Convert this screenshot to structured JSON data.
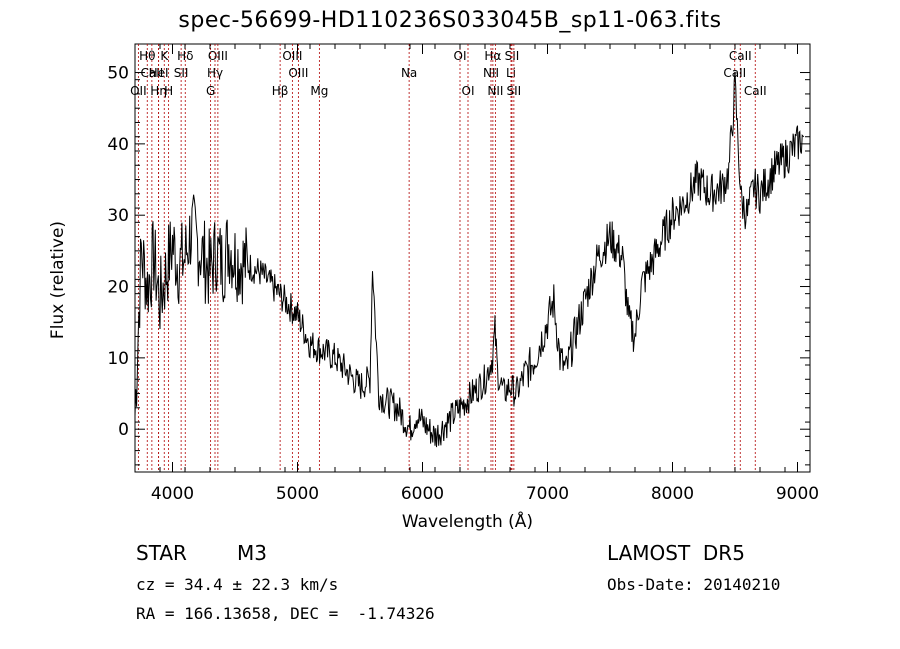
{
  "chart_data": {
    "type": "line",
    "title": "spec-56699-HD110236S033045B_sp11-063.fits",
    "xlabel": "Wavelength (Å)",
    "ylabel": "Flux (relative)",
    "xlim": [
      3700,
      9100
    ],
    "ylim": [
      -6,
      54
    ],
    "xticks": [
      4000,
      5000,
      6000,
      7000,
      8000,
      9000
    ],
    "yticks": [
      0,
      10,
      20,
      30,
      40,
      50
    ],
    "grid": false,
    "series": [
      {
        "x": [
          3700,
          3750,
          3800,
          3850,
          3900,
          3950,
          4000,
          4050,
          4100,
          4150,
          4200,
          4250,
          4300,
          4350,
          4400,
          4450,
          4500,
          4600,
          4700,
          4800,
          4900,
          5000,
          5100,
          5200,
          5300,
          5400,
          5500,
          5580,
          5600,
          5650,
          5700,
          5800,
          5900,
          5950,
          6000,
          6100,
          6200,
          6300,
          6400,
          6500,
          6560,
          6580,
          6600,
          6650,
          6700,
          6750,
          6800,
          6900,
          7000,
          7050,
          7100,
          7150,
          7200,
          7300,
          7400,
          7500,
          7600,
          7650,
          7700,
          7750,
          7800,
          7900,
          8000,
          8100,
          8200,
          8300,
          8400,
          8450,
          8500,
          8550,
          8600,
          8650,
          8700,
          8800,
          8900,
          9000,
          9050
        ],
        "y": [
          2,
          25,
          20,
          24,
          18,
          22,
          26,
          23,
          24,
          28,
          26,
          24,
          22,
          25,
          23,
          26,
          24,
          23,
          22,
          20,
          18,
          16,
          12,
          11,
          10,
          8,
          6,
          7,
          23,
          5,
          4,
          3,
          0,
          2,
          1,
          -1,
          1,
          3,
          5,
          7,
          10,
          14,
          8,
          5,
          6,
          5,
          7,
          10,
          15,
          18,
          10,
          8,
          12,
          18,
          24,
          27,
          24,
          15,
          13,
          20,
          22,
          26,
          30,
          32,
          35,
          33,
          34,
          36,
          48,
          32,
          30,
          34,
          33,
          36,
          38,
          40,
          41
        ]
      }
    ],
    "lines": [
      {
        "name": "Hθ",
        "x": 3798,
        "row": 0
      },
      {
        "name": "CaII",
        "x": 3835,
        "row": 1
      },
      {
        "name": "OII",
        "x": 3727,
        "row": 2
      },
      {
        "name": "K",
        "x": 3934,
        "row": 0
      },
      {
        "name": "HeI",
        "x": 3889,
        "row": 1
      },
      {
        "name": "Hη",
        "x": 3889,
        "row": 2
      },
      {
        "name": "H",
        "x": 3969,
        "row": 2
      },
      {
        "name": "Hδ",
        "x": 4102,
        "row": 0
      },
      {
        "name": "SII",
        "x": 4069,
        "row": 1
      },
      {
        "name": "OIII",
        "x": 4363,
        "row": 0
      },
      {
        "name": "Hγ",
        "x": 4340,
        "row": 1
      },
      {
        "name": "G",
        "x": 4305,
        "row": 2
      },
      {
        "name": "OIII",
        "x": 4959,
        "row": 0
      },
      {
        "name": "OIII",
        "x": 5007,
        "row": 1
      },
      {
        "name": "Hβ",
        "x": 4861,
        "row": 2
      },
      {
        "name": "Mg",
        "x": 5175,
        "row": 2
      },
      {
        "name": "Na",
        "x": 5893,
        "row": 1
      },
      {
        "name": "OI",
        "x": 6300,
        "row": 0
      },
      {
        "name": "OI",
        "x": 6364,
        "row": 2
      },
      {
        "name": "Hα",
        "x": 6563,
        "row": 0
      },
      {
        "name": "SII",
        "x": 6716,
        "row": 0
      },
      {
        "name": "NII",
        "x": 6548,
        "row": 1
      },
      {
        "name": "Li",
        "x": 6708,
        "row": 1
      },
      {
        "name": "NII",
        "x": 6583,
        "row": 2
      },
      {
        "name": "SII",
        "x": 6731,
        "row": 2
      },
      {
        "name": "CaII",
        "x": 8542,
        "row": 0
      },
      {
        "name": "CaII",
        "x": 8498,
        "row": 1
      },
      {
        "name": "CaII",
        "x": 8662,
        "row": 2
      }
    ]
  },
  "info": {
    "class": "STAR",
    "subclass": "M3",
    "survey": "LAMOST  DR5",
    "cz": "cz = 34.4 ± 22.3 km/s",
    "obs_date": "Obs-Date: 20140210",
    "radec": "RA = 166.13658, DEC =  -1.74326"
  }
}
